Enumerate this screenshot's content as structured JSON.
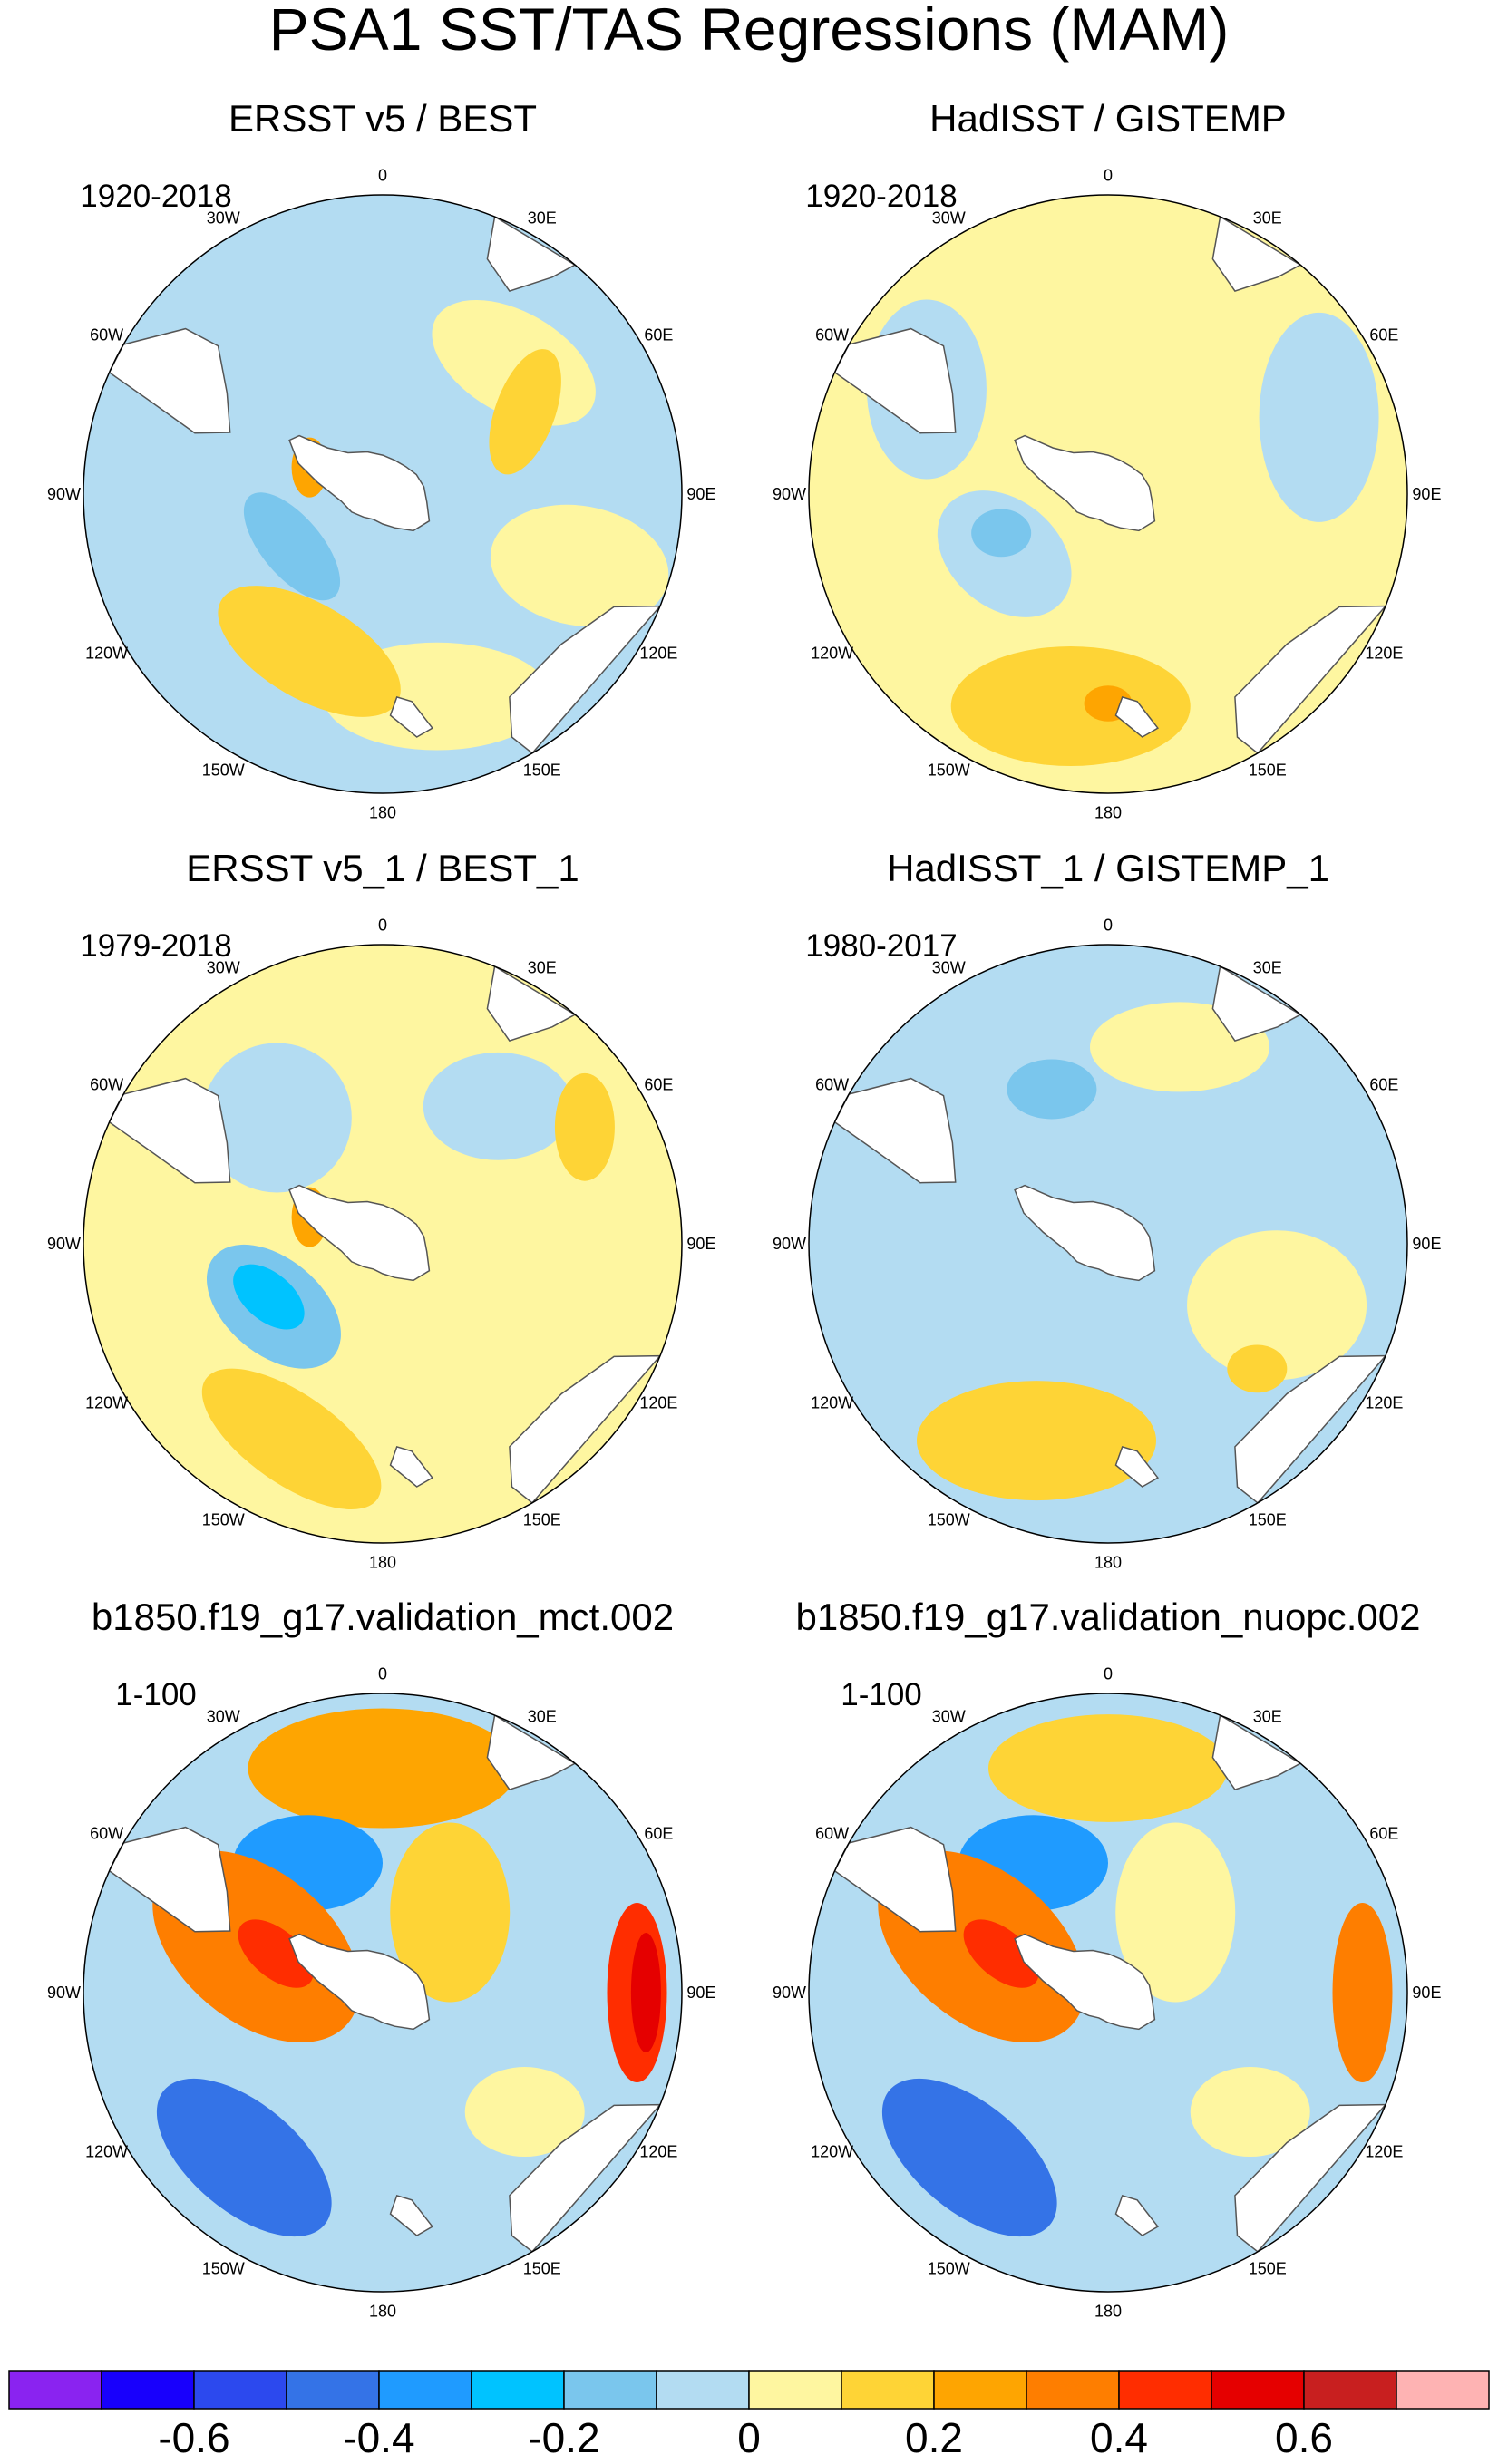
{
  "figure": {
    "title": "PSA1 SST/TAS Regressions (MAM)"
  },
  "longitude_labels": [
    "0",
    "30E",
    "60E",
    "90E",
    "120E",
    "150E",
    "180",
    "150W",
    "120W",
    "90W",
    "60W",
    "30W"
  ],
  "panels": [
    {
      "title": "ERSST v5 / BEST",
      "period": "1920-2018",
      "background_color": "#b3dcf2",
      "features": [
        {
          "lon": 45,
          "r": 0.62,
          "rx": 0.3,
          "ry": 0.17,
          "rot": 30,
          "color": "#fef6a0"
        },
        {
          "lon": 110,
          "r": 0.7,
          "rx": 0.3,
          "ry": 0.2,
          "rot": 10,
          "color": "#fef6a0"
        },
        {
          "lon": 165,
          "r": 0.7,
          "rx": 0.38,
          "ry": 0.18,
          "rot": 0,
          "color": "#fef6a0"
        },
        {
          "lon": 205,
          "r": 0.58,
          "rx": 0.34,
          "ry": 0.16,
          "rot": 30,
          "color": "#fed436"
        },
        {
          "lon": 240,
          "r": 0.35,
          "rx": 0.22,
          "ry": 0.1,
          "rot": 50,
          "color": "#7ac6ed"
        },
        {
          "lon": 290,
          "r": 0.26,
          "rx": 0.06,
          "ry": 0.1,
          "rot": 0,
          "color": "#fea501"
        },
        {
          "lon": 60,
          "r": 0.55,
          "rx": 0.1,
          "ry": 0.22,
          "rot": 20,
          "color": "#fed436"
        }
      ]
    },
    {
      "title": "HadISST / GISTEMP",
      "period": "1920-2018",
      "background_color": "#fef6a0",
      "features": [
        {
          "lon": 240,
          "r": 0.4,
          "rx": 0.25,
          "ry": 0.18,
          "rot": 40,
          "color": "#b3dcf2"
        },
        {
          "lon": 250,
          "r": 0.38,
          "rx": 0.1,
          "ry": 0.08,
          "rot": 0,
          "color": "#7ac6ed"
        },
        {
          "lon": 70,
          "r": 0.75,
          "rx": 0.2,
          "ry": 0.35,
          "rot": 0,
          "color": "#b3dcf2"
        },
        {
          "lon": 300,
          "r": 0.7,
          "rx": 0.2,
          "ry": 0.3,
          "rot": 0,
          "color": "#b3dcf2"
        },
        {
          "lon": 190,
          "r": 0.72,
          "rx": 0.4,
          "ry": 0.2,
          "rot": 0,
          "color": "#fed436"
        },
        {
          "lon": 180,
          "r": 0.7,
          "rx": 0.08,
          "ry": 0.06,
          "rot": 0,
          "color": "#fea501"
        }
      ]
    },
    {
      "title": "ERSST v5_1 / BEST_1",
      "period": "1979-2018",
      "background_color": "#fef6a0",
      "features": [
        {
          "lon": 240,
          "r": 0.42,
          "rx": 0.26,
          "ry": 0.16,
          "rot": 40,
          "color": "#7ac6ed"
        },
        {
          "lon": 245,
          "r": 0.42,
          "rx": 0.14,
          "ry": 0.08,
          "rot": 40,
          "color": "#00c3ff"
        },
        {
          "lon": 320,
          "r": 0.55,
          "rx": 0.25,
          "ry": 0.25,
          "rot": 0,
          "color": "#b3dcf2"
        },
        {
          "lon": 40,
          "r": 0.6,
          "rx": 0.25,
          "ry": 0.18,
          "rot": 0,
          "color": "#b3dcf2"
        },
        {
          "lon": 205,
          "r": 0.72,
          "rx": 0.35,
          "ry": 0.15,
          "rot": 35,
          "color": "#fed436"
        },
        {
          "lon": 60,
          "r": 0.78,
          "rx": 0.1,
          "ry": 0.18,
          "rot": 0,
          "color": "#fed436"
        },
        {
          "lon": 290,
          "r": 0.26,
          "rx": 0.06,
          "ry": 0.1,
          "rot": 0,
          "color": "#fea501"
        }
      ]
    },
    {
      "title": "HadISST_1 / GISTEMP_1",
      "period": "1980-2017",
      "background_color": "#b3dcf2",
      "features": [
        {
          "lon": 200,
          "r": 0.7,
          "rx": 0.4,
          "ry": 0.2,
          "rot": 0,
          "color": "#fed436"
        },
        {
          "lon": 110,
          "r": 0.6,
          "rx": 0.3,
          "ry": 0.25,
          "rot": 0,
          "color": "#fef6a0"
        },
        {
          "lon": 130,
          "r": 0.65,
          "rx": 0.1,
          "ry": 0.08,
          "rot": 0,
          "color": "#fed436"
        },
        {
          "lon": 20,
          "r": 0.7,
          "rx": 0.3,
          "ry": 0.15,
          "rot": 0,
          "color": "#fef6a0"
        },
        {
          "lon": 340,
          "r": 0.55,
          "rx": 0.15,
          "ry": 0.1,
          "rot": 0,
          "color": "#7ac6ed"
        }
      ]
    },
    {
      "title": "b1850.f19_g17.validation_mct.002",
      "period": "1-100",
      "background_color": "#b3dcf2",
      "features": [
        {
          "lon": 0,
          "r": 0.75,
          "rx": 0.45,
          "ry": 0.2,
          "rot": 0,
          "color": "#fea501"
        },
        {
          "lon": 330,
          "r": 0.5,
          "rx": 0.25,
          "ry": 0.16,
          "rot": 0,
          "color": "#1f9bff"
        },
        {
          "lon": 290,
          "r": 0.45,
          "rx": 0.4,
          "ry": 0.25,
          "rot": 40,
          "color": "#fe7e00"
        },
        {
          "lon": 290,
          "r": 0.38,
          "rx": 0.15,
          "ry": 0.08,
          "rot": 40,
          "color": "#ff2d00"
        },
        {
          "lon": 90,
          "r": 0.85,
          "rx": 0.1,
          "ry": 0.3,
          "rot": 0,
          "color": "#ff2d00"
        },
        {
          "lon": 90,
          "r": 0.88,
          "rx": 0.05,
          "ry": 0.2,
          "rot": 0,
          "color": "#e50000"
        },
        {
          "lon": 220,
          "r": 0.72,
          "rx": 0.35,
          "ry": 0.18,
          "rot": 40,
          "color": "#3473e7"
        },
        {
          "lon": 130,
          "r": 0.62,
          "rx": 0.2,
          "ry": 0.15,
          "rot": 0,
          "color": "#fef6a0"
        },
        {
          "lon": 40,
          "r": 0.35,
          "rx": 0.2,
          "ry": 0.3,
          "rot": 0,
          "color": "#fed436"
        }
      ]
    },
    {
      "title": "b1850.f19_g17.validation_nuopc.002",
      "period": "1-100",
      "background_color": "#b3dcf2",
      "features": [
        {
          "lon": 0,
          "r": 0.75,
          "rx": 0.4,
          "ry": 0.18,
          "rot": 0,
          "color": "#fed436"
        },
        {
          "lon": 330,
          "r": 0.5,
          "rx": 0.25,
          "ry": 0.16,
          "rot": 0,
          "color": "#1f9bff"
        },
        {
          "lon": 290,
          "r": 0.45,
          "rx": 0.4,
          "ry": 0.25,
          "rot": 40,
          "color": "#fe7e00"
        },
        {
          "lon": 290,
          "r": 0.38,
          "rx": 0.15,
          "ry": 0.08,
          "rot": 40,
          "color": "#ff2d00"
        },
        {
          "lon": 90,
          "r": 0.85,
          "rx": 0.1,
          "ry": 0.3,
          "rot": 0,
          "color": "#fe7e00"
        },
        {
          "lon": 220,
          "r": 0.72,
          "rx": 0.35,
          "ry": 0.18,
          "rot": 40,
          "color": "#3473e7"
        },
        {
          "lon": 130,
          "r": 0.62,
          "rx": 0.2,
          "ry": 0.15,
          "rot": 0,
          "color": "#fef6a0"
        },
        {
          "lon": 40,
          "r": 0.35,
          "rx": 0.2,
          "ry": 0.3,
          "rot": 0,
          "color": "#fef6a0"
        }
      ]
    }
  ],
  "colorbar": {
    "colors": [
      "#8a23f0",
      "#1800fc",
      "#2c49ee",
      "#3473e7",
      "#1f9bff",
      "#00c3ff",
      "#7ac6ed",
      "#b3dcf2",
      "#fef6a0",
      "#fed436",
      "#fea501",
      "#fe7e00",
      "#ff2d00",
      "#e50000",
      "#c81f1f",
      "#feb3b3"
    ],
    "tick_labels": [
      "-0.6",
      "-0.4",
      "-0.2",
      "0",
      "0.2",
      "0.4",
      "0.6"
    ],
    "tick_boundary_index": [
      2,
      4,
      6,
      8,
      10,
      12,
      14
    ]
  }
}
